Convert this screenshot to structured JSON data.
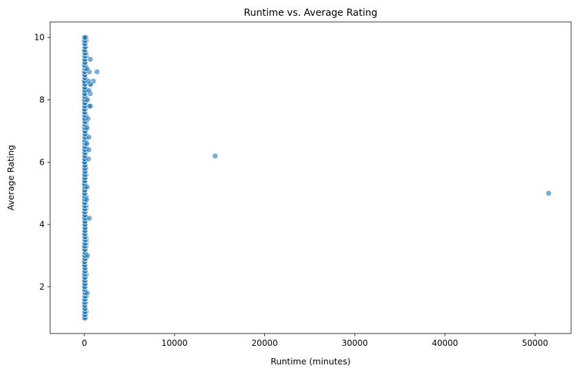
{
  "chart_data": {
    "type": "scatter",
    "title": "Runtime vs. Average Rating",
    "xlabel": "Runtime (minutes)",
    "ylabel": "Average Rating",
    "xlim": [
      -3800,
      54000
    ],
    "ylim": [
      0.5,
      10.5
    ],
    "xticks": [
      0,
      10000,
      20000,
      30000,
      40000,
      50000
    ],
    "yticks": [
      2,
      4,
      6,
      8,
      10
    ],
    "xtick_labels": [
      "0",
      "10000",
      "20000",
      "30000",
      "40000",
      "50000"
    ],
    "ytick_labels": [
      "2",
      "4",
      "6",
      "8",
      "10"
    ],
    "grid": false,
    "legend": "none",
    "marker_color": "#1f77b4",
    "marker_alpha": 0.6,
    "marker_edge_color": "#ffffff",
    "series": [
      {
        "points": [
          [
            14500,
            6.2
          ],
          [
            51500,
            5.0
          ],
          [
            1400,
            8.9
          ],
          [
            1000,
            8.6
          ],
          [
            650,
            9.3
          ],
          [
            550,
            8.9
          ],
          [
            600,
            8.5
          ],
          [
            700,
            8.5
          ],
          [
            650,
            8.2
          ],
          [
            500,
            8.3
          ],
          [
            450,
            8.6
          ],
          [
            700,
            7.8
          ],
          [
            600,
            7.8
          ],
          [
            500,
            6.8
          ],
          [
            450,
            6.1
          ],
          [
            500,
            6.4
          ],
          [
            550,
            4.2
          ],
          [
            350,
            3.0
          ],
          [
            300,
            1.8
          ],
          [
            400,
            7.4
          ],
          [
            350,
            8.0
          ],
          [
            300,
            9.0
          ],
          [
            250,
            6.6
          ],
          [
            300,
            5.2
          ],
          [
            250,
            4.8
          ],
          [
            300,
            7.1
          ]
        ]
      }
    ]
  }
}
